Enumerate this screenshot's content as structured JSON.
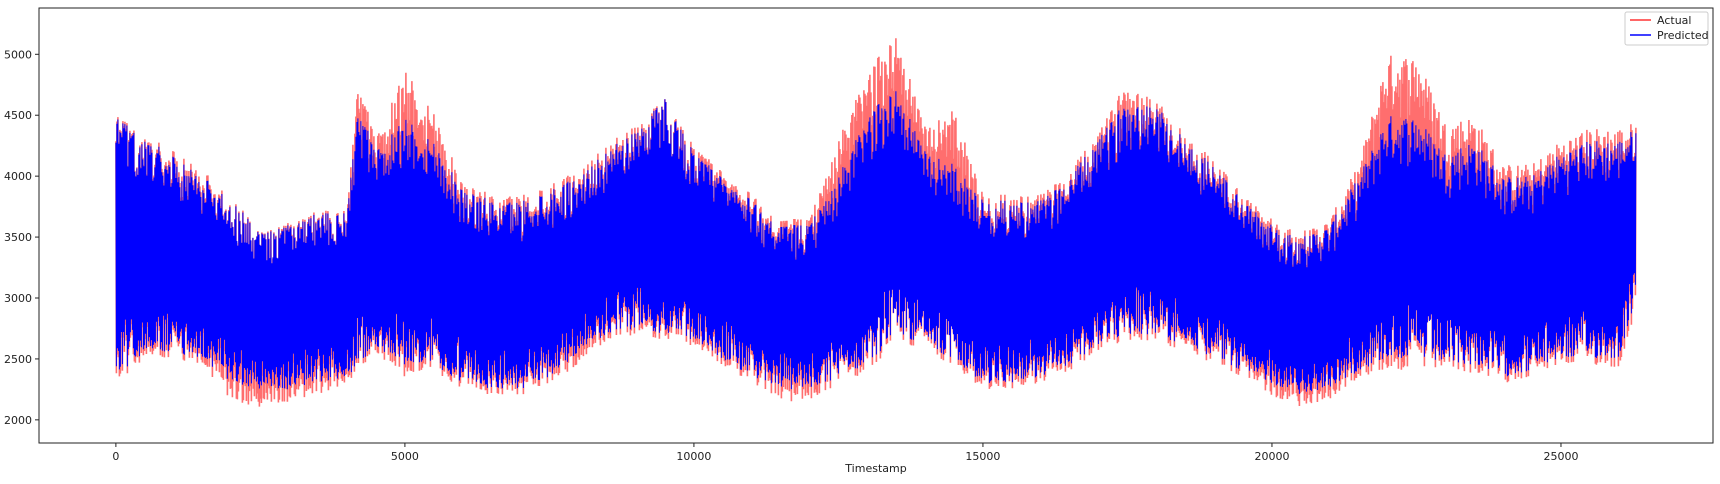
{
  "chart_data": {
    "type": "line",
    "title": "",
    "xlabel": "Timestamp",
    "ylabel": "",
    "xlim": [
      -1330,
      27630
    ],
    "ylim": [
      1810,
      5380
    ],
    "xticks": [
      0,
      5000,
      10000,
      15000,
      20000,
      25000
    ],
    "yticks": [
      2000,
      2500,
      3000,
      3500,
      4000,
      4500,
      5000
    ],
    "grid": false,
    "legend": {
      "placement": "top-right",
      "entries": [
        "Actual",
        "Predicted"
      ]
    },
    "note_values": "envelope (min/max) of each series sampled every ~500 timestamps",
    "x": [
      0,
      500,
      1000,
      1500,
      2000,
      2500,
      3000,
      3500,
      4000,
      4200,
      4500,
      5000,
      5500,
      6000,
      6500,
      7000,
      7500,
      8000,
      8500,
      9000,
      9500,
      10000,
      10500,
      11000,
      11500,
      12000,
      12500,
      13000,
      13500,
      14000,
      14500,
      15000,
      15500,
      16000,
      16500,
      17000,
      17500,
      18000,
      18500,
      19000,
      19500,
      20000,
      20500,
      21000,
      21500,
      22000,
      22500,
      23000,
      23500,
      24000,
      24500,
      25000,
      25500,
      26000,
      26300
    ],
    "series": [
      {
        "name": "Actual",
        "color": "#ff6666",
        "upper": [
          4520,
          4320,
          4250,
          4050,
          3820,
          3560,
          3620,
          3720,
          3720,
          4820,
          4300,
          4900,
          4550,
          3950,
          3850,
          3850,
          3950,
          4050,
          4250,
          4450,
          4650,
          4250,
          4050,
          3850,
          3650,
          3650,
          4300,
          4850,
          5200,
          4400,
          4550,
          3850,
          3850,
          3850,
          4050,
          4350,
          4800,
          4650,
          4350,
          4150,
          3850,
          3650,
          3550,
          3650,
          4100,
          5000,
          5000,
          4450,
          4500,
          4100,
          4100,
          4300,
          4400,
          4400,
          4450
        ],
        "lower": [
          2290,
          2500,
          2500,
          2450,
          2150,
          2100,
          2150,
          2200,
          2300,
          2350,
          2550,
          2350,
          2400,
          2250,
          2200,
          2200,
          2300,
          2450,
          2650,
          2700,
          2650,
          2600,
          2450,
          2300,
          2150,
          2150,
          2300,
          2380,
          2650,
          2550,
          2450,
          2250,
          2250,
          2300,
          2400,
          2550,
          2650,
          2650,
          2550,
          2450,
          2350,
          2200,
          2100,
          2150,
          2350,
          2400,
          2400,
          2400,
          2380,
          2300,
          2350,
          2450,
          2450,
          2420,
          2900
        ]
      },
      {
        "name": "Predicted",
        "color": "#0000ff",
        "upper": [
          4500,
          4300,
          4200,
          4000,
          3800,
          3550,
          3600,
          3700,
          3700,
          4600,
          4200,
          4500,
          4300,
          3900,
          3800,
          3800,
          3900,
          4000,
          4200,
          4400,
          4650,
          4200,
          4000,
          3800,
          3600,
          3600,
          4000,
          4500,
          4750,
          4200,
          4100,
          3800,
          3800,
          3800,
          4000,
          4300,
          4650,
          4600,
          4300,
          4100,
          3800,
          3600,
          3500,
          3600,
          4000,
          4500,
          4500,
          4200,
          4300,
          4000,
          4000,
          4200,
          4300,
          4300,
          4400
        ],
        "lower": [
          2350,
          2550,
          2550,
          2500,
          2300,
          2250,
          2250,
          2300,
          2350,
          2400,
          2600,
          2450,
          2450,
          2300,
          2250,
          2250,
          2350,
          2550,
          2700,
          2750,
          2700,
          2650,
          2500,
          2350,
          2250,
          2250,
          2350,
          2450,
          2700,
          2600,
          2500,
          2300,
          2300,
          2350,
          2450,
          2600,
          2700,
          2700,
          2600,
          2500,
          2400,
          2300,
          2200,
          2250,
          2400,
          2500,
          2500,
          2450,
          2450,
          2350,
          2400,
          2500,
          2500,
          2500,
          3000
        ]
      }
    ]
  }
}
